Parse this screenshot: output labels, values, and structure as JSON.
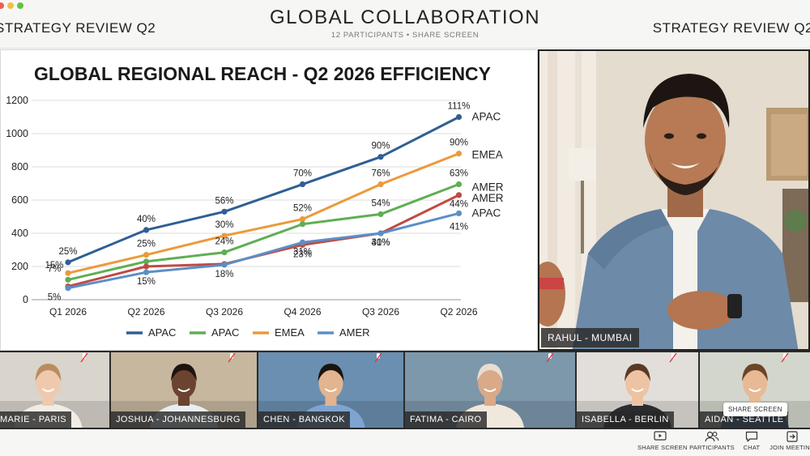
{
  "window": {
    "title": "GLOBAL COLLABORATION",
    "subtitle": "12 PARTICIPANTS  •  SHARE SCREEN",
    "left_label": "STRATEGY REVIEW Q2",
    "right_label": "STRATEGY REVIEW Q2",
    "traffic_colors": [
      "#ee5f57",
      "#f4bd3e",
      "#5fc43f"
    ]
  },
  "chart_data": {
    "type": "line",
    "title": "GLOBAL REGIONAL REACH - Q2 2026 EFFICIENCY",
    "categories": [
      "Q1 2026",
      "Q2 2026",
      "Q3 2026",
      "Q4 2026",
      "Q3 2026",
      "Q2 2026"
    ],
    "ylim": [
      0,
      1200
    ],
    "yticks": [
      0,
      200,
      400,
      600,
      800,
      1000,
      1200
    ],
    "grid": true,
    "legend_position": "bottom",
    "series": [
      {
        "name": "APAC",
        "color": "#2f5f95",
        "values": [
          225,
          420,
          530,
          695,
          860,
          1100
        ],
        "labels": [
          "25%",
          "40%",
          "56%",
          "70%",
          "90%",
          "111%"
        ],
        "end_label": "APAC",
        "in_legend": true
      },
      {
        "name": "EMEA",
        "color": "#eb9a3b",
        "values": [
          160,
          270,
          385,
          485,
          695,
          880
        ],
        "labels": [
          "15%",
          "25%",
          "30%",
          "52%",
          "76%",
          "90%"
        ],
        "end_label": "EMEA",
        "in_legend": true
      },
      {
        "name": "APAC",
        "color": "#5fae53",
        "values": [
          120,
          230,
          285,
          455,
          515,
          695
        ],
        "labels": [
          "7%",
          "",
          "24%",
          "",
          "54%",
          "63%"
        ],
        "end_label": "AMER",
        "in_legend": true
      },
      {
        "name": "AMER",
        "color": "#c04a44",
        "values": [
          80,
          200,
          215,
          330,
          400,
          630
        ],
        "labels": [
          "",
          "",
          "",
          "23%",
          "41%",
          ""
        ],
        "end_label": "AMER",
        "in_legend": false
      },
      {
        "name": "AMER",
        "color": "#5b8fc7",
        "values": [
          70,
          165,
          210,
          345,
          400,
          520
        ],
        "labels": [
          "5%",
          "15%",
          "18%",
          "31%",
          "30%",
          "44%"
        ],
        "end_label": "APAC",
        "in_legend": true
      }
    ],
    "extra_label": "41%",
    "legend_entries": [
      {
        "name": "APAC",
        "color": "#2f5f95"
      },
      {
        "name": "APAC",
        "color": "#5fae53"
      },
      {
        "name": "EMEA",
        "color": "#eb9a3b"
      },
      {
        "name": "AMER",
        "color": "#5b8fc7"
      }
    ]
  },
  "main_speaker": {
    "name": "RAHUL - MUMBAI"
  },
  "participants": [
    {
      "name": "MARIE - PARIS",
      "bg": "#d9d4cc",
      "skin": "#efc9ae",
      "hair": "#b98d5c",
      "shirt": "#f1ede6"
    },
    {
      "name": "JOSHUA - JOHANNESBURG",
      "bg": "#c7b79e",
      "skin": "#6b4330",
      "hair": "#1d1410",
      "shirt": "#e9eef5"
    },
    {
      "name": "CHEN - BANGKOK",
      "bg": "#6b8fb0",
      "skin": "#e2b48f",
      "hair": "#1a1410",
      "shirt": "#7fa4d1"
    },
    {
      "name": "FATIMA - CAIRO",
      "bg": "#7d98ab",
      "skin": "#d9a988",
      "hair": "#e8ddd0",
      "shirt": "#f0e8dc"
    },
    {
      "name": "ISABELLA - BERLIN",
      "bg": "#e2dfda",
      "skin": "#edc3a3",
      "hair": "#5a3a24",
      "shirt": "#2c2b30"
    },
    {
      "name": "AIDAN - SEATTLE",
      "bg": "#d3d6cc",
      "skin": "#e7b994",
      "hair": "#6a4528",
      "shirt": "#3a5f86"
    }
  ],
  "controls": {
    "share": "SHARE SCREEN",
    "participants": "PARTICIPANTS",
    "chat": "CHAT",
    "join": "JOIN MEETING",
    "tooltip": "SHARE SCREEN"
  }
}
